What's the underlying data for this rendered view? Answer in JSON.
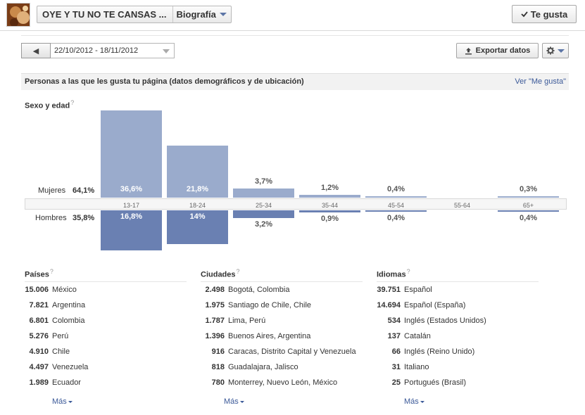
{
  "header": {
    "page_name": "OYE Y TU NO TE CANSAS ...",
    "timeline_label": "Biografía",
    "like_label": "Te gusta"
  },
  "toolbar": {
    "prev_symbol": "◀",
    "date_range": "22/10/2012 - 18/11/2012",
    "export_label": "Exportar datos"
  },
  "section": {
    "title": "Personas a las que les gusta tu página (datos demográficos y de ubicación)",
    "see_likes": "Ver \"Me gusta\""
  },
  "gender_age": {
    "title": "Sexo y edad",
    "help": "?",
    "women_label": "Mujeres",
    "women_total": "64,1%",
    "men_label": "Hombres",
    "men_total": "35,8%",
    "colors": {
      "women": "#9aabcc",
      "men": "#6a80b2"
    },
    "age_groups": [
      "13-17",
      "18-24",
      "25-34",
      "35-44",
      "45-54",
      "55-64",
      "65+"
    ],
    "women": [
      {
        "value": 36.6,
        "label": "36,6%"
      },
      {
        "value": 21.8,
        "label": "21,8%"
      },
      {
        "value": 3.7,
        "label": "3,7%"
      },
      {
        "value": 1.2,
        "label": "1,2%"
      },
      {
        "value": 0.4,
        "label": "0,4%"
      },
      {
        "value": 0,
        "label": ""
      },
      {
        "value": 0.3,
        "label": "0,3%"
      }
    ],
    "men": [
      {
        "value": 16.8,
        "label": "16,8%"
      },
      {
        "value": 14,
        "label": "14%"
      },
      {
        "value": 3.2,
        "label": "3,2%"
      },
      {
        "value": 0.9,
        "label": "0,9%"
      },
      {
        "value": 0.4,
        "label": "0,4%"
      },
      {
        "value": 0,
        "label": ""
      },
      {
        "value": 0.4,
        "label": "0,4%"
      }
    ]
  },
  "countries": {
    "title": "Países",
    "help": "?",
    "more": "Más",
    "items": [
      {
        "count": "15.006",
        "name": "México"
      },
      {
        "count": "7.821",
        "name": "Argentina"
      },
      {
        "count": "6.801",
        "name": "Colombia"
      },
      {
        "count": "5.276",
        "name": "Perú"
      },
      {
        "count": "4.910",
        "name": "Chile"
      },
      {
        "count": "4.497",
        "name": "Venezuela"
      },
      {
        "count": "1.989",
        "name": "Ecuador"
      }
    ]
  },
  "cities": {
    "title": "Ciudades",
    "help": "?",
    "more": "Más",
    "items": [
      {
        "count": "2.498",
        "name": "Bogotá, Colombia"
      },
      {
        "count": "1.975",
        "name": "Santiago de Chile, Chile"
      },
      {
        "count": "1.787",
        "name": "Lima, Perú"
      },
      {
        "count": "1.396",
        "name": "Buenos Aires, Argentina"
      },
      {
        "count": "916",
        "name": "Caracas, Distrito Capital y Venezuela"
      },
      {
        "count": "818",
        "name": "Guadalajara, Jalisco"
      },
      {
        "count": "780",
        "name": "Monterrey, Nuevo León, México"
      }
    ]
  },
  "languages": {
    "title": "Idiomas",
    "help": "?",
    "more": "Más",
    "items": [
      {
        "count": "39.751",
        "name": "Español"
      },
      {
        "count": "14.694",
        "name": "Español (España)"
      },
      {
        "count": "534",
        "name": "Inglés (Estados Unidos)"
      },
      {
        "count": "137",
        "name": "Catalán"
      },
      {
        "count": "66",
        "name": "Inglés (Reino Unido)"
      },
      {
        "count": "31",
        "name": "Italiano"
      },
      {
        "count": "25",
        "name": "Portugués (Brasil)"
      }
    ]
  }
}
